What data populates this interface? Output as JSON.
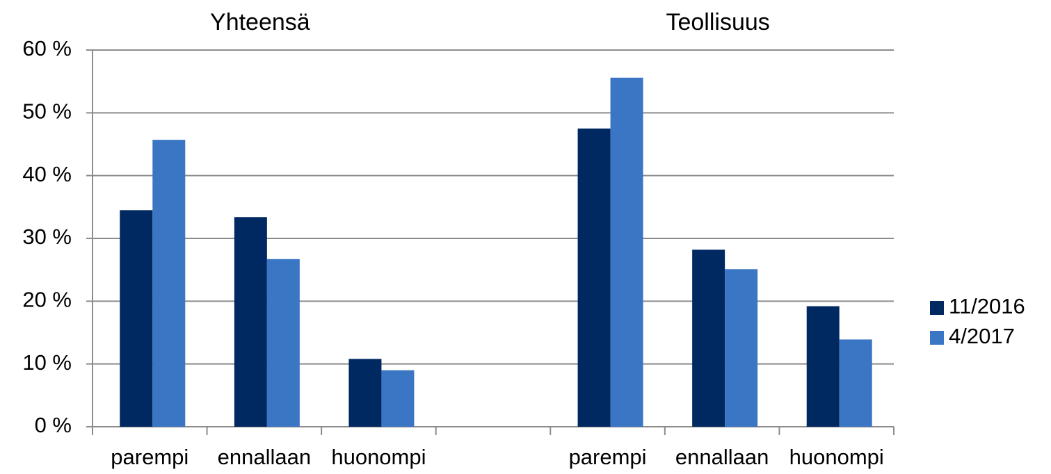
{
  "chart_data": {
    "type": "bar",
    "annotations": [
      "Yhteensä",
      "Teollisuus"
    ],
    "categories": [
      "parempi",
      "ennallaan",
      "huonompi",
      null,
      "parempi",
      "ennallaan",
      "huonompi"
    ],
    "series": [
      {
        "name": "11/2016",
        "color": "#002861",
        "values": [
          34.5,
          33.4,
          10.8,
          null,
          47.5,
          28.2,
          19.2
        ]
      },
      {
        "name": "4/2017",
        "color": "#3a76c4",
        "values": [
          45.7,
          26.7,
          9.0,
          null,
          55.6,
          25.1,
          13.9
        ]
      }
    ],
    "ylim": [
      0,
      60
    ],
    "yticks": [
      {
        "value": 0,
        "label": "0 %"
      },
      {
        "value": 10,
        "label": "10 %"
      },
      {
        "value": 20,
        "label": "20 %"
      },
      {
        "value": 30,
        "label": "30 %"
      },
      {
        "value": 40,
        "label": "40 %"
      },
      {
        "value": 50,
        "label": "50 %"
      },
      {
        "value": 60,
        "label": "60 %"
      }
    ],
    "grid": true,
    "legend": "right"
  }
}
